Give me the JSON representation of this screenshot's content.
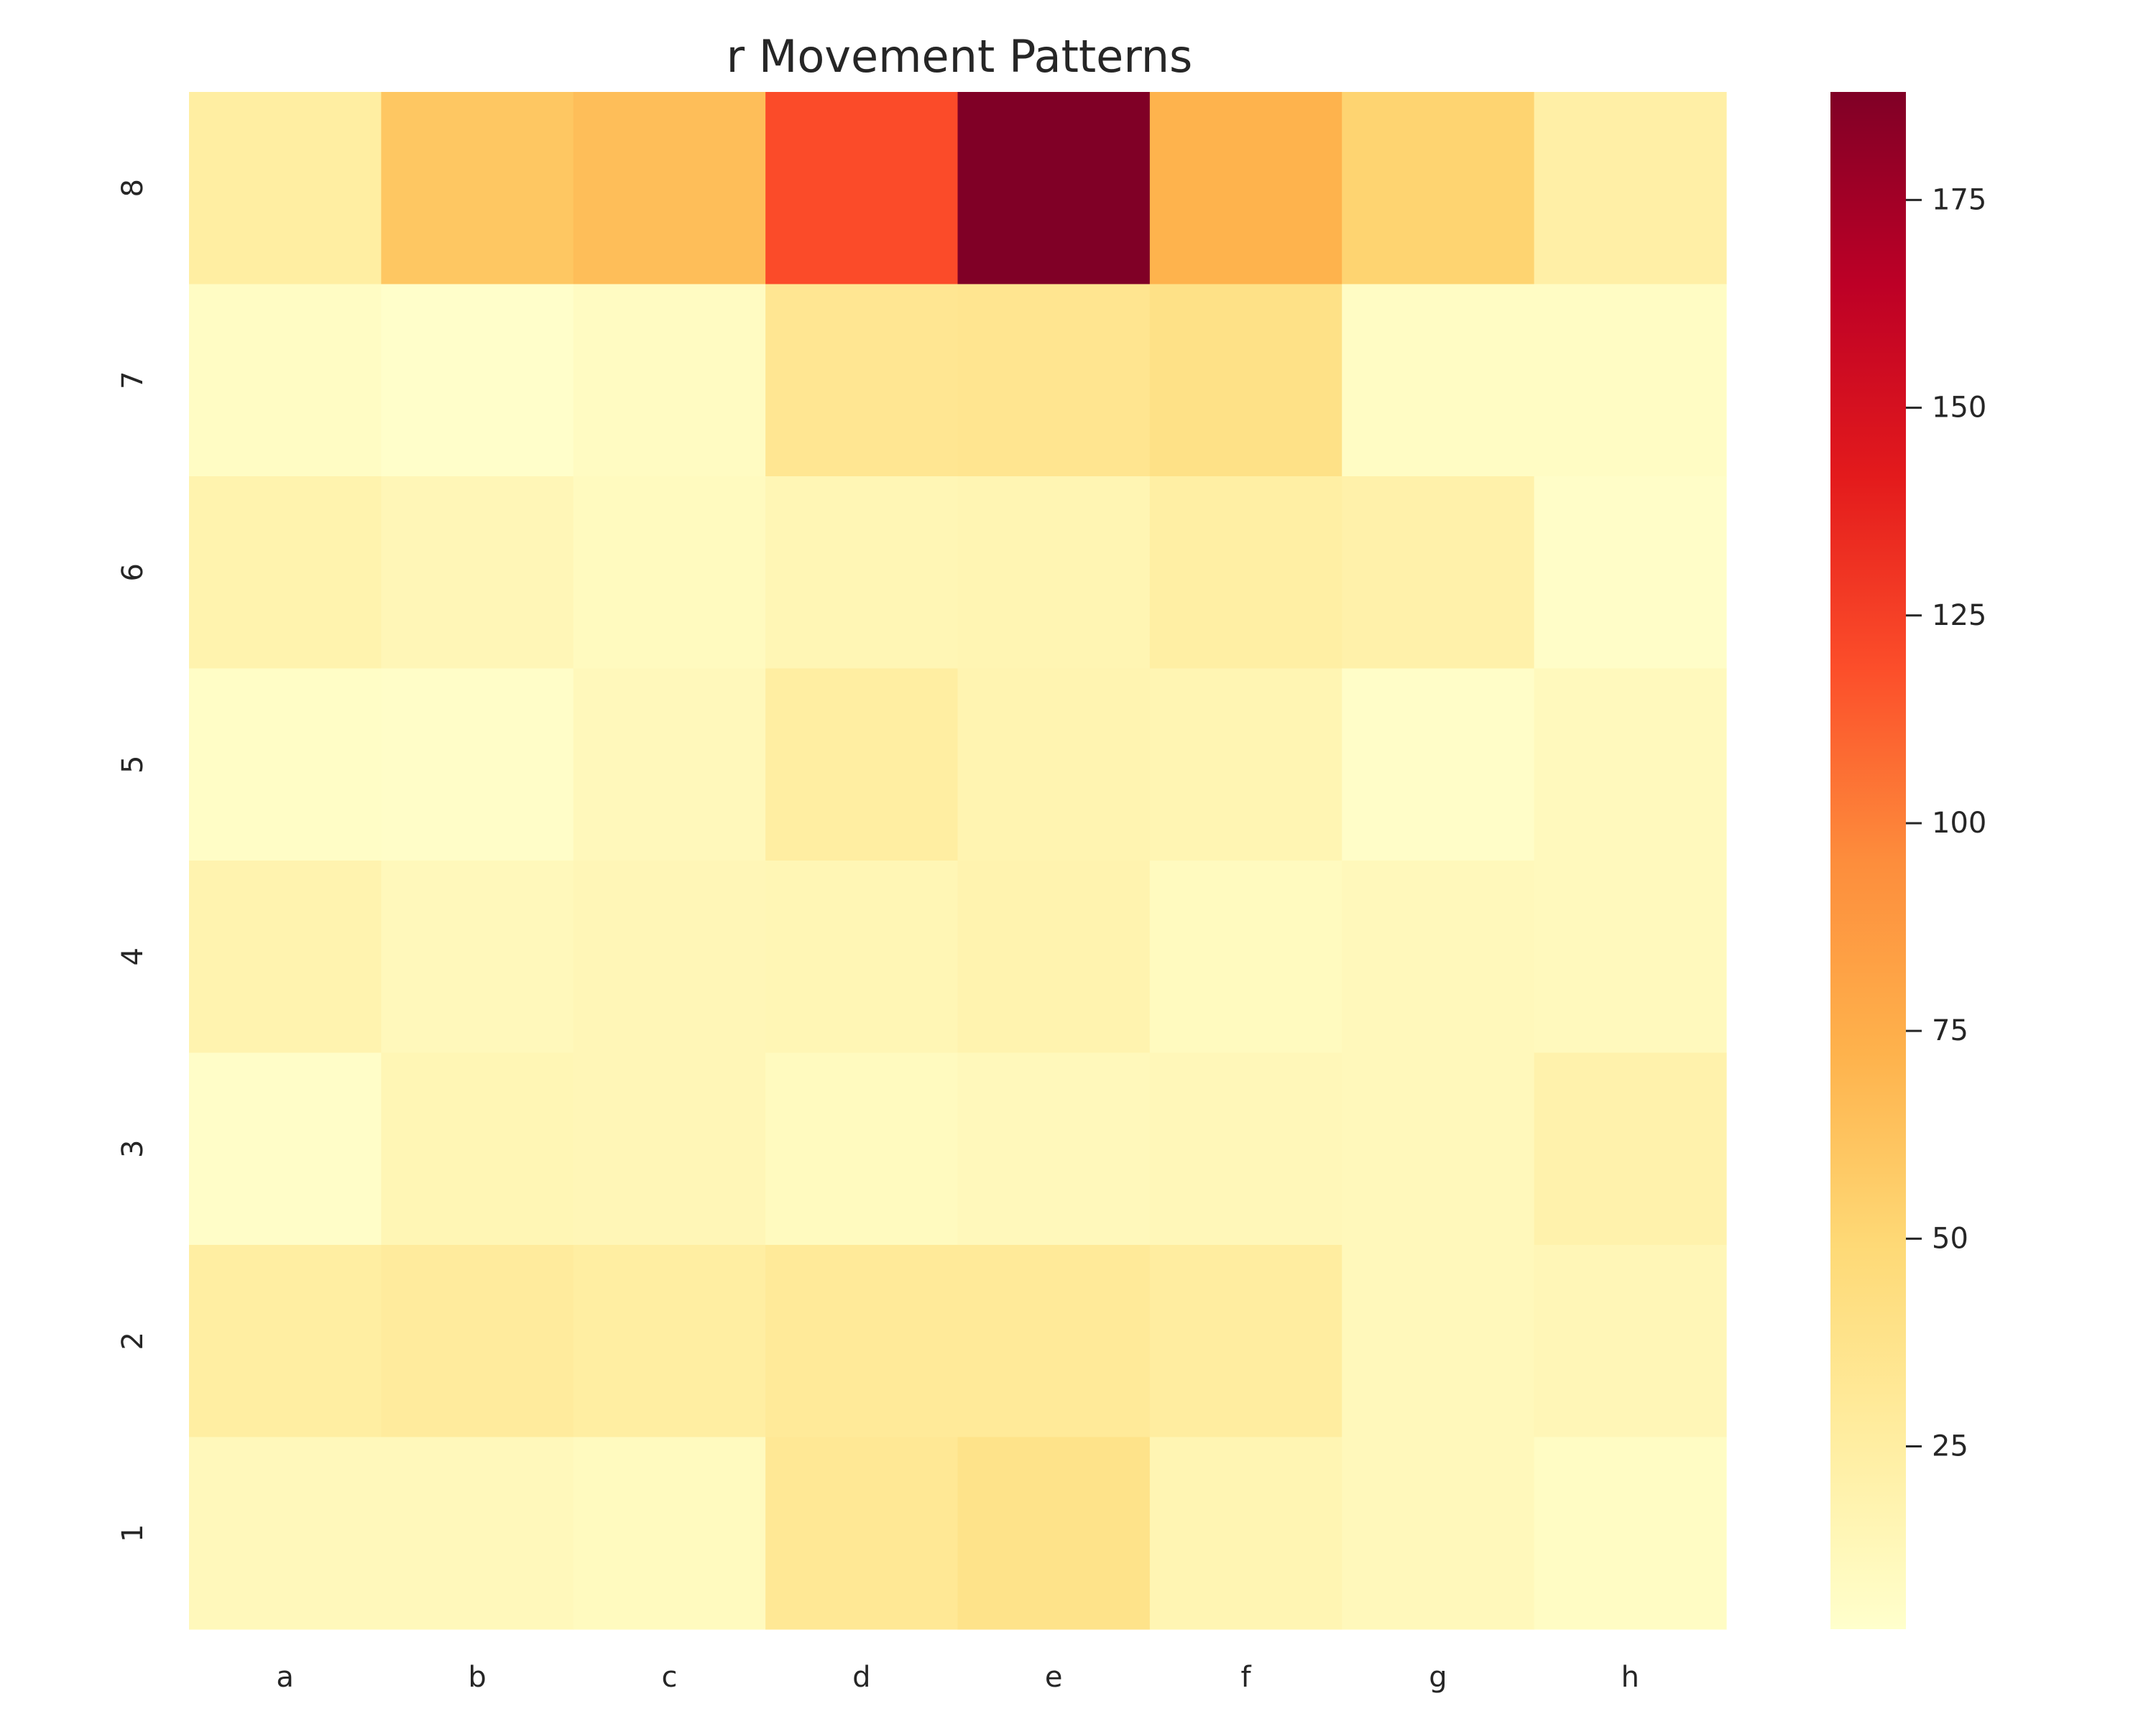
{
  "chart_data": {
    "type": "heatmap",
    "title": "r Movement Patterns",
    "xlabel": "",
    "ylabel": "",
    "x_categories": [
      "a",
      "b",
      "c",
      "d",
      "e",
      "f",
      "g",
      "h"
    ],
    "y_categories": [
      "8",
      "7",
      "6",
      "5",
      "4",
      "3",
      "2",
      "1"
    ],
    "values": [
      [
        25,
        60,
        65,
        120,
        188,
        72,
        52,
        23
      ],
      [
        7,
        4,
        8,
        34,
        35,
        40,
        7,
        7
      ],
      [
        19,
        14,
        10,
        15,
        16,
        24,
        21,
        5
      ],
      [
        6,
        5,
        12,
        25,
        17,
        16,
        5,
        11
      ],
      [
        18,
        12,
        14,
        15,
        18,
        10,
        12,
        11
      ],
      [
        5,
        15,
        14,
        10,
        12,
        13,
        12,
        20
      ],
      [
        25,
        28,
        25,
        30,
        30,
        26,
        12,
        14
      ],
      [
        12,
        12,
        10,
        32,
        38,
        16,
        12,
        7
      ]
    ],
    "colorbar": {
      "min": 3,
      "max": 188,
      "ticks": [
        25,
        50,
        75,
        100,
        125,
        150,
        175
      ],
      "colormap": "YlOrRd",
      "colormap_stops": [
        "#ffffcc",
        "#ffeda0",
        "#fed976",
        "#feb24c",
        "#fd8d3c",
        "#fc4e2a",
        "#e31a1c",
        "#bd0026",
        "#800026"
      ]
    },
    "grid": false
  }
}
